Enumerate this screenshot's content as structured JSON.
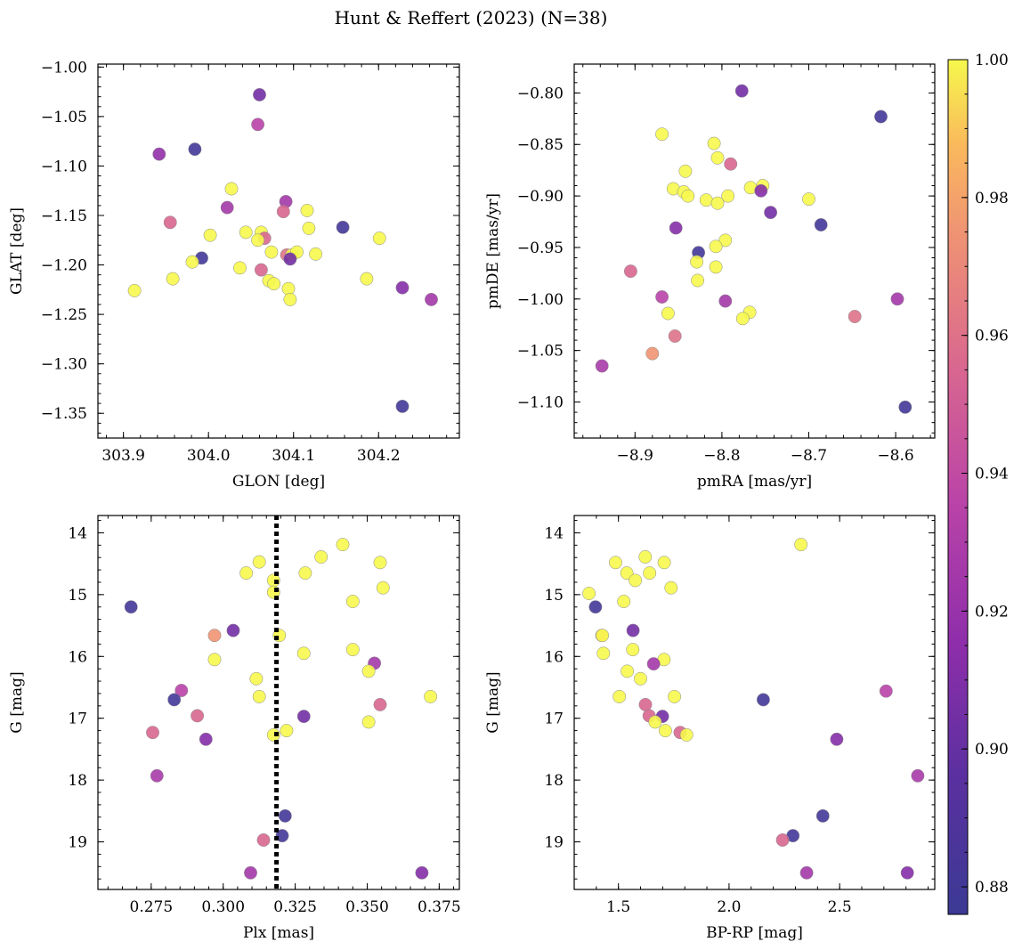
{
  "figure": {
    "title": "Hunt & Reffert (2023) (N=38)"
  },
  "colorbar": {
    "vmin": 0.876,
    "vmax": 1.0,
    "colormap": "plasma",
    "ticks": [
      0.88,
      0.9,
      0.92,
      0.94,
      0.96,
      0.98,
      1.0
    ],
    "tick_labels": [
      "0.88",
      "0.90",
      "0.92",
      "0.94",
      "0.96",
      "0.98",
      "1.00"
    ]
  },
  "chart_data": [
    {
      "type": "scatter",
      "id": "glon-glat",
      "xlabel": "GLON [deg]",
      "ylabel": "GLAT [deg]",
      "xlim": [
        303.87,
        304.295
      ],
      "ylim": [
        -1.375,
        -0.997
      ],
      "invert_y": false,
      "xticks": [
        303.9,
        304.0,
        304.1,
        304.2
      ],
      "xtick_labels": [
        "303.9",
        "304.0",
        "304.1",
        "304.2"
      ],
      "yticks": [
        -1.35,
        -1.3,
        -1.25,
        -1.2,
        -1.15,
        -1.1,
        -1.05,
        -1.0
      ],
      "ytick_labels": [
        "−1.35",
        "−1.30",
        "−1.25",
        "−1.20",
        "−1.15",
        "−1.10",
        "−1.05",
        "−1.00"
      ],
      "points": [
        [
          304.06,
          -1.028,
          0.905
        ],
        [
          304.058,
          -1.058,
          0.935
        ],
        [
          303.942,
          -1.088,
          0.918
        ],
        [
          303.984,
          -1.083,
          0.882
        ],
        [
          304.027,
          -1.123,
          1.0
        ],
        [
          304.022,
          -1.142,
          0.925
        ],
        [
          303.955,
          -1.157,
          0.955
        ],
        [
          304.091,
          -1.136,
          0.925
        ],
        [
          304.088,
          -1.146,
          0.955
        ],
        [
          304.116,
          -1.145,
          1.0
        ],
        [
          304.158,
          -1.162,
          0.882
        ],
        [
          304.118,
          -1.163,
          1.0
        ],
        [
          304.044,
          -1.167,
          1.0
        ],
        [
          304.062,
          -1.167,
          1.0
        ],
        [
          304.066,
          -1.173,
          0.955
        ],
        [
          304.002,
          -1.17,
          1.0
        ],
        [
          304.058,
          -1.175,
          1.0
        ],
        [
          304.201,
          -1.173,
          1.0
        ],
        [
          304.074,
          -1.187,
          1.0
        ],
        [
          304.092,
          -1.19,
          0.96
        ],
        [
          304.098,
          -1.19,
          1.0
        ],
        [
          304.104,
          -1.187,
          1.0
        ],
        [
          304.126,
          -1.189,
          1.0
        ],
        [
          304.096,
          -1.194,
          0.905
        ],
        [
          303.992,
          -1.193,
          0.882
        ],
        [
          303.981,
          -1.197,
          1.0
        ],
        [
          304.037,
          -1.203,
          1.0
        ],
        [
          304.062,
          -1.205,
          0.955
        ],
        [
          304.071,
          -1.216,
          1.0
        ],
        [
          304.077,
          -1.219,
          1.0
        ],
        [
          303.958,
          -1.214,
          1.0
        ],
        [
          304.186,
          -1.214,
          1.0
        ],
        [
          304.094,
          -1.224,
          1.0
        ],
        [
          303.913,
          -1.226,
          1.0
        ],
        [
          304.228,
          -1.223,
          0.912
        ],
        [
          304.096,
          -1.235,
          1.0
        ],
        [
          304.262,
          -1.235,
          0.925
        ],
        [
          304.228,
          -1.343,
          0.882
        ]
      ]
    },
    {
      "type": "scatter",
      "id": "pmra-pmde",
      "xlabel": "pmRA [mas/yr]",
      "ylabel": "pmDE [mas/yr]",
      "xlim": [
        -8.97,
        -8.555
      ],
      "ylim": [
        -1.135,
        -0.772
      ],
      "invert_y": false,
      "xticks": [
        -8.9,
        -8.8,
        -8.7,
        -8.6
      ],
      "xtick_labels": [
        "−8.9",
        "−8.8",
        "−8.7",
        "−8.6"
      ],
      "yticks": [
        -1.1,
        -1.05,
        -1.0,
        -0.95,
        -0.9,
        -0.85,
        -0.8
      ],
      "ytick_labels": [
        "−1.10",
        "−1.05",
        "−1.00",
        "−0.95",
        "−0.90",
        "−0.85",
        "−0.80"
      ],
      "points": [
        [
          -8.777,
          -0.798,
          0.905
        ],
        [
          -8.617,
          -0.823,
          0.882
        ],
        [
          -8.869,
          -0.84,
          1.0
        ],
        [
          -8.809,
          -0.849,
          1.0
        ],
        [
          -8.805,
          -0.863,
          1.0
        ],
        [
          -8.79,
          -0.869,
          0.955
        ],
        [
          -8.842,
          -0.876,
          1.0
        ],
        [
          -8.753,
          -0.89,
          1.0
        ],
        [
          -8.767,
          -0.892,
          1.0
        ],
        [
          -8.856,
          -0.893,
          1.0
        ],
        [
          -8.844,
          -0.896,
          1.0
        ],
        [
          -8.755,
          -0.895,
          0.912
        ],
        [
          -8.839,
          -0.9,
          1.0
        ],
        [
          -8.793,
          -0.9,
          1.0
        ],
        [
          -8.818,
          -0.904,
          1.0
        ],
        [
          -8.805,
          -0.907,
          1.0
        ],
        [
          -8.7,
          -0.903,
          1.0
        ],
        [
          -8.744,
          -0.916,
          0.905
        ],
        [
          -8.686,
          -0.928,
          0.882
        ],
        [
          -8.853,
          -0.931,
          0.912
        ],
        [
          -8.796,
          -0.943,
          1.0
        ],
        [
          -8.807,
          -0.949,
          1.0
        ],
        [
          -8.827,
          -0.955,
          0.882
        ],
        [
          -8.829,
          -0.964,
          1.0
        ],
        [
          -8.807,
          -0.969,
          1.0
        ],
        [
          -8.905,
          -0.973,
          0.955
        ],
        [
          -8.828,
          -0.982,
          1.0
        ],
        [
          -8.869,
          -0.998,
          0.935
        ],
        [
          -8.796,
          -1.002,
          0.925
        ],
        [
          -8.598,
          -1.0,
          0.925
        ],
        [
          -8.862,
          -1.014,
          1.0
        ],
        [
          -8.768,
          -1.013,
          1.0
        ],
        [
          -8.776,
          -1.019,
          1.0
        ],
        [
          -8.647,
          -1.017,
          0.96
        ],
        [
          -8.854,
          -1.036,
          0.96
        ],
        [
          -8.88,
          -1.053,
          0.975
        ],
        [
          -8.938,
          -1.065,
          0.928
        ],
        [
          -8.589,
          -1.105,
          0.882
        ]
      ]
    },
    {
      "type": "scatter",
      "id": "plx-g",
      "xlabel": "Plx [mas]",
      "ylabel": "G [mag]",
      "xlim": [
        0.2565,
        0.382
      ],
      "ylim": [
        19.77,
        13.72
      ],
      "invert_y": true,
      "vline_x": 0.3185,
      "xticks": [
        0.275,
        0.3,
        0.325,
        0.35,
        0.375
      ],
      "xtick_labels": [
        "0.275",
        "0.300",
        "0.325",
        "0.350",
        "0.375"
      ],
      "yticks": [
        14,
        15,
        16,
        17,
        18,
        19
      ],
      "ytick_labels": [
        "14",
        "15",
        "16",
        "17",
        "18",
        "19"
      ],
      "points": [
        [
          0.3415,
          14.19,
          1.0
        ],
        [
          0.334,
          14.39,
          1.0
        ],
        [
          0.3125,
          14.47,
          1.0
        ],
        [
          0.3545,
          14.48,
          1.0
        ],
        [
          0.308,
          14.65,
          1.0
        ],
        [
          0.3285,
          14.65,
          1.0
        ],
        [
          0.3175,
          14.77,
          1.0
        ],
        [
          0.3555,
          14.89,
          1.0
        ],
        [
          0.3175,
          14.96,
          1.0
        ],
        [
          0.345,
          15.11,
          1.0
        ],
        [
          0.268,
          15.2,
          0.882
        ],
        [
          0.3035,
          15.58,
          0.905
        ],
        [
          0.297,
          15.66,
          0.975
        ],
        [
          0.3195,
          15.66,
          1.0
        ],
        [
          0.345,
          15.89,
          1.0
        ],
        [
          0.328,
          15.95,
          1.0
        ],
        [
          0.297,
          16.05,
          1.0
        ],
        [
          0.3525,
          16.11,
          0.925
        ],
        [
          0.3505,
          16.24,
          1.0
        ],
        [
          0.3115,
          16.36,
          1.0
        ],
        [
          0.2855,
          16.55,
          0.935
        ],
        [
          0.3125,
          16.65,
          1.0
        ],
        [
          0.372,
          16.65,
          1.0
        ],
        [
          0.283,
          16.7,
          0.882
        ],
        [
          0.3545,
          16.78,
          0.955
        ],
        [
          0.291,
          16.96,
          0.955
        ],
        [
          0.328,
          16.97,
          0.905
        ],
        [
          0.3505,
          17.06,
          1.0
        ],
        [
          0.322,
          17.2,
          1.0
        ],
        [
          0.2755,
          17.23,
          0.955
        ],
        [
          0.3175,
          17.27,
          1.0
        ],
        [
          0.294,
          17.34,
          0.912
        ],
        [
          0.277,
          17.93,
          0.928
        ],
        [
          0.3215,
          18.58,
          0.882
        ],
        [
          0.3205,
          18.9,
          0.882
        ],
        [
          0.314,
          18.97,
          0.955
        ],
        [
          0.3095,
          19.5,
          0.925
        ],
        [
          0.369,
          19.5,
          0.912
        ]
      ]
    },
    {
      "type": "scatter",
      "id": "bprp-g",
      "xlabel": "BP-RP [mag]",
      "ylabel": "G [mag]",
      "xlim": [
        1.3,
        2.93
      ],
      "ylim": [
        19.77,
        13.72
      ],
      "invert_y": true,
      "xticks": [
        1.5,
        2.0,
        2.5
      ],
      "xtick_labels": [
        "1.5",
        "2.0",
        "2.5"
      ],
      "yticks": [
        14,
        15,
        16,
        17,
        18,
        19
      ],
      "ytick_labels": [
        "14",
        "15",
        "16",
        "17",
        "18",
        "19"
      ],
      "points": [
        [
          2.325,
          14.19,
          1.0
        ],
        [
          1.621,
          14.39,
          1.0
        ],
        [
          1.487,
          14.48,
          1.0
        ],
        [
          1.707,
          14.48,
          1.0
        ],
        [
          1.538,
          14.65,
          1.0
        ],
        [
          1.641,
          14.65,
          1.0
        ],
        [
          1.576,
          14.77,
          1.0
        ],
        [
          1.738,
          14.89,
          1.0
        ],
        [
          1.367,
          14.98,
          1.0
        ],
        [
          1.524,
          15.11,
          1.0
        ],
        [
          1.396,
          15.2,
          0.882
        ],
        [
          1.566,
          15.58,
          0.905
        ],
        [
          1.425,
          15.66,
          0.985
        ],
        [
          1.427,
          15.66,
          1.0
        ],
        [
          1.565,
          15.89,
          1.0
        ],
        [
          1.432,
          15.95,
          1.0
        ],
        [
          1.706,
          16.05,
          1.0
        ],
        [
          1.659,
          16.12,
          0.925
        ],
        [
          1.54,
          16.24,
          1.0
        ],
        [
          1.6,
          16.36,
          1.0
        ],
        [
          2.71,
          16.56,
          0.935
        ],
        [
          1.504,
          16.65,
          1.0
        ],
        [
          1.753,
          16.65,
          1.0
        ],
        [
          2.155,
          16.7,
          0.882
        ],
        [
          1.622,
          16.78,
          0.955
        ],
        [
          1.639,
          16.96,
          0.955
        ],
        [
          1.699,
          16.97,
          0.905
        ],
        [
          1.666,
          17.06,
          1.0
        ],
        [
          1.712,
          17.2,
          1.0
        ],
        [
          1.779,
          17.23,
          0.955
        ],
        [
          1.808,
          17.27,
          1.0
        ],
        [
          2.487,
          17.34,
          0.912
        ],
        [
          2.853,
          17.93,
          0.928
        ],
        [
          2.424,
          18.58,
          0.882
        ],
        [
          2.289,
          18.9,
          0.882
        ],
        [
          2.242,
          18.97,
          0.955
        ],
        [
          2.351,
          19.5,
          0.925
        ],
        [
          2.806,
          19.5,
          0.912
        ]
      ]
    }
  ]
}
